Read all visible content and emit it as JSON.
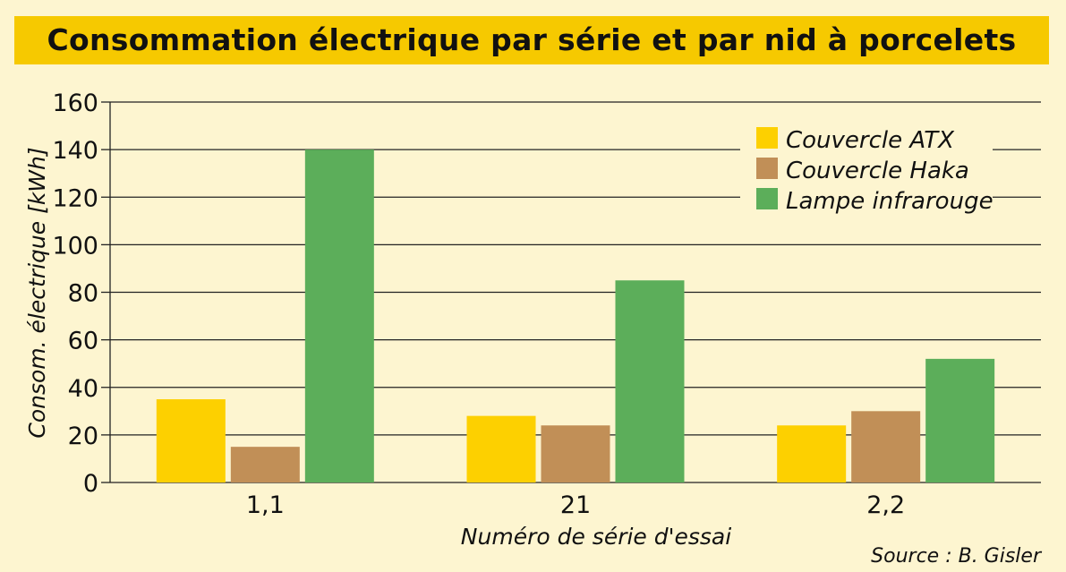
{
  "chart_data": {
    "type": "bar",
    "title": "Consommation électrique par série et par nid à porcelets",
    "xlabel": "Numéro de série d'essai",
    "ylabel": "Consom. électrique [kWh]",
    "categories": [
      "1,1",
      "21",
      "2,2"
    ],
    "series": [
      {
        "name": "Couvercle ATX",
        "values": [
          35,
          28,
          24
        ],
        "color": "#fdd000"
      },
      {
        "name": "Couvercle Haka",
        "values": [
          15,
          24,
          30
        ],
        "color": "#c18f57"
      },
      {
        "name": "Lampe infrarouge",
        "values": [
          140,
          85,
          52
        ],
        "color": "#5cae5a"
      }
    ],
    "ylim": [
      0,
      160
    ],
    "yticks": [
      0,
      20,
      40,
      60,
      80,
      100,
      120,
      140,
      160
    ],
    "grid": true,
    "legend_position": "top-right",
    "source": "Source : B. Gisler"
  }
}
